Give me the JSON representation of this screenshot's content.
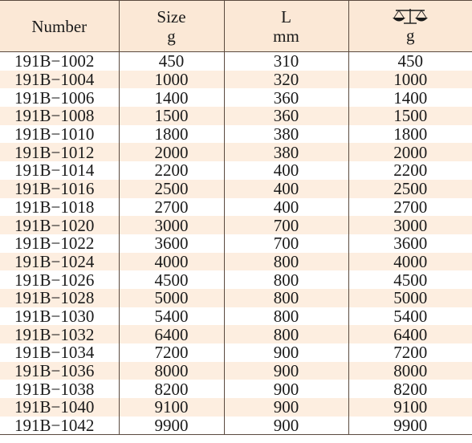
{
  "table": {
    "headers": {
      "number": "Number",
      "size": [
        "Size",
        "g"
      ],
      "length": [
        "L",
        "mm"
      ],
      "weight_icon": "balance-scale-icon",
      "weight_unit": "g"
    },
    "rows": [
      {
        "number": "191B−1002",
        "size": "450",
        "length": "310",
        "weight": "450"
      },
      {
        "number": "191B−1004",
        "size": "1000",
        "length": "320",
        "weight": "1000"
      },
      {
        "number": "191B−1006",
        "size": "1400",
        "length": "360",
        "weight": "1400"
      },
      {
        "number": "191B−1008",
        "size": "1500",
        "length": "360",
        "weight": "1500"
      },
      {
        "number": "191B−1010",
        "size": "1800",
        "length": "380",
        "weight": "1800"
      },
      {
        "number": "191B−1012",
        "size": "2000",
        "length": "380",
        "weight": "2000"
      },
      {
        "number": "191B−1014",
        "size": "2200",
        "length": "400",
        "weight": "2200"
      },
      {
        "number": "191B−1016",
        "size": "2500",
        "length": "400",
        "weight": "2500"
      },
      {
        "number": "191B−1018",
        "size": "2700",
        "length": "400",
        "weight": "2700"
      },
      {
        "number": "191B−1020",
        "size": "3000",
        "length": "700",
        "weight": "3000"
      },
      {
        "number": "191B−1022",
        "size": "3600",
        "length": "700",
        "weight": "3600"
      },
      {
        "number": "191B−1024",
        "size": "4000",
        "length": "800",
        "weight": "4000"
      },
      {
        "number": "191B−1026",
        "size": "4500",
        "length": "800",
        "weight": "4500"
      },
      {
        "number": "191B−1028",
        "size": "5000",
        "length": "800",
        "weight": "5000"
      },
      {
        "number": "191B−1030",
        "size": "5400",
        "length": "800",
        "weight": "5400"
      },
      {
        "number": "191B−1032",
        "size": "6400",
        "length": "800",
        "weight": "6400"
      },
      {
        "number": "191B−1034",
        "size": "7200",
        "length": "900",
        "weight": "7200"
      },
      {
        "number": "191B−1036",
        "size": "8000",
        "length": "900",
        "weight": "8000"
      },
      {
        "number": "191B−1038",
        "size": "8200",
        "length": "900",
        "weight": "8200"
      },
      {
        "number": "191B−1040",
        "size": "9100",
        "length": "900",
        "weight": "9100"
      },
      {
        "number": "191B−1042",
        "size": "9900",
        "length": "900",
        "weight": "9900"
      }
    ]
  },
  "colors": {
    "header_bg": "#fbe8d6",
    "stripe_bg": "#fdeee0",
    "border": "#5a4a3f"
  }
}
